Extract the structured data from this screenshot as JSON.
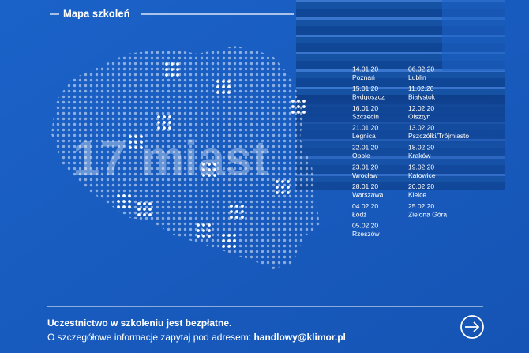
{
  "header": {
    "title": "Mapa szkoleń"
  },
  "map": {
    "label": "17 miast"
  },
  "schedule": {
    "left": [
      {
        "date": "14.01.20",
        "city": "Poznań"
      },
      {
        "date": "15.01.20",
        "city": "Bydgoszcz"
      },
      {
        "date": "16.01.20",
        "city": "Szczecin"
      },
      {
        "date": "21.01.20",
        "city": "Legnica"
      },
      {
        "date": "22.01.20",
        "city": "Opole"
      },
      {
        "date": "23.01.20",
        "city": "Wrocław"
      },
      {
        "date": "28.01.20",
        "city": "Warszawa"
      },
      {
        "date": "04.02.20",
        "city": "Łódź"
      },
      {
        "date": "05.02.20",
        "city": "Rzeszów"
      }
    ],
    "right": [
      {
        "date": "06.02.20",
        "city": "Lublin"
      },
      {
        "date": "11.02.20",
        "city": "Białystok"
      },
      {
        "date": "12.02.20",
        "city": "Olsztyn"
      },
      {
        "date": "13.02.20",
        "city": "Pszczółki/Trójmiasto"
      },
      {
        "date": "18.02.20",
        "city": "Kraków"
      },
      {
        "date": "19.02.20",
        "city": "Katowice"
      },
      {
        "date": "20.02.20",
        "city": "Kielce"
      },
      {
        "date": "25.02.20",
        "city": "Zielona Góra"
      }
    ]
  },
  "footer": {
    "headline": "Uczestnictwo w szkoleniu jest bezpłatne.",
    "info": "O szczegółowe informacje zapytaj pod adresem:",
    "email": "handlowy@klimor.pl"
  }
}
